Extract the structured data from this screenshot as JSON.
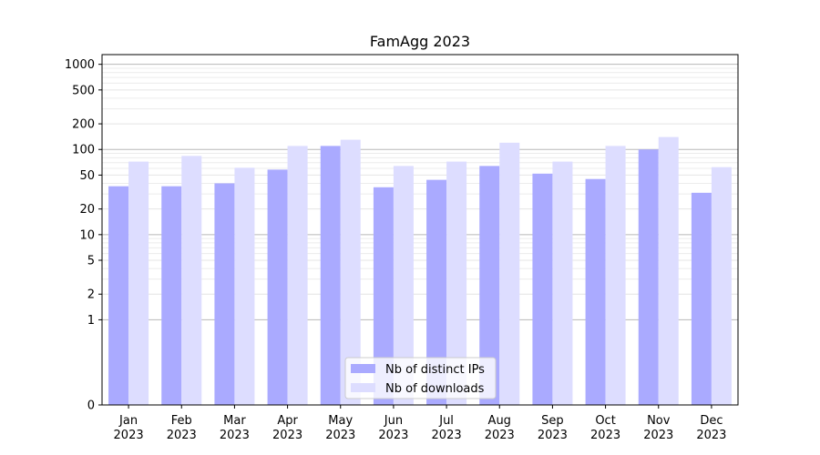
{
  "chart_data": {
    "type": "bar",
    "title": "FamAgg 2023",
    "xlabel": "",
    "ylabel": "",
    "y_scale": "symlog",
    "ylim": [
      0,
      1300
    ],
    "yticks": [
      0,
      1,
      2,
      5,
      10,
      20,
      50,
      100,
      200,
      500,
      1000
    ],
    "categories": [
      [
        "Jan",
        "2023"
      ],
      [
        "Feb",
        "2023"
      ],
      [
        "Mar",
        "2023"
      ],
      [
        "Apr",
        "2023"
      ],
      [
        "May",
        "2023"
      ],
      [
        "Jun",
        "2023"
      ],
      [
        "Jul",
        "2023"
      ],
      [
        "Aug",
        "2023"
      ],
      [
        "Sep",
        "2023"
      ],
      [
        "Oct",
        "2023"
      ],
      [
        "Nov",
        "2023"
      ],
      [
        "Dec",
        "2023"
      ]
    ],
    "series": [
      {
        "name": "Nb of distinct IPs",
        "color": "#aaaaff",
        "values": [
          37,
          37,
          40,
          58,
          110,
          36,
          44,
          64,
          52,
          45,
          100,
          31
        ]
      },
      {
        "name": "Nb of downloads",
        "color": "#ddddff",
        "values": [
          72,
          84,
          61,
          110,
          130,
          64,
          72,
          120,
          72,
          110,
          140,
          62
        ]
      }
    ],
    "grid": true,
    "legend_position": "bottom-center"
  }
}
